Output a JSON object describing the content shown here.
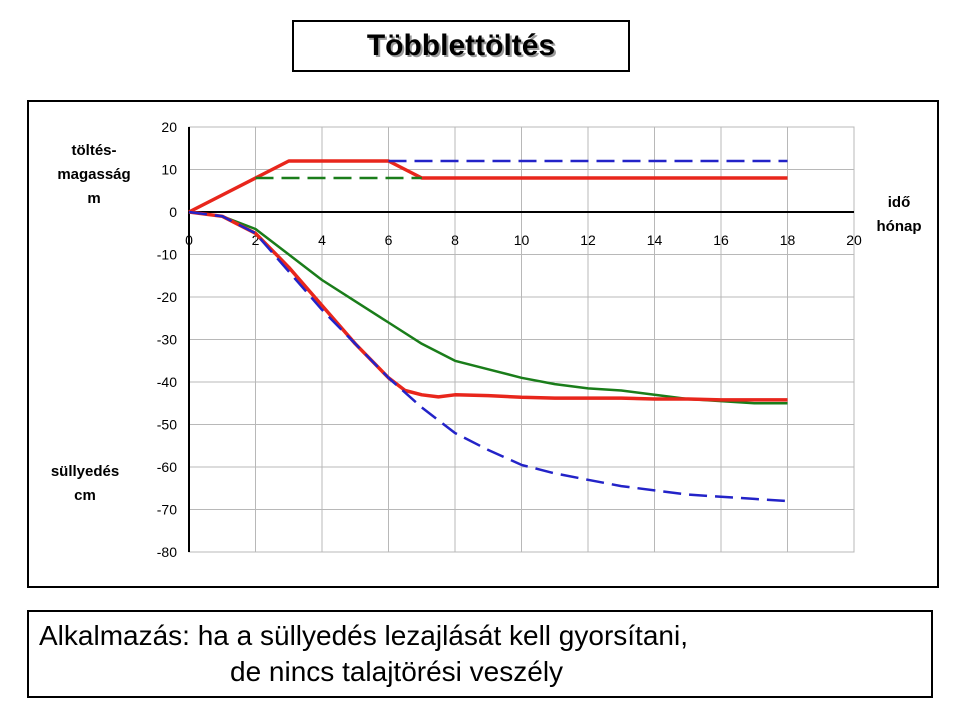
{
  "title": "Többlettöltés",
  "bottom_text": {
    "line1": "Alkalmazás:  ha a süllyedés lezajlását kell gyorsítani,",
    "line2": "de nincs talajtörési veszély"
  },
  "chart_data": {
    "type": "line",
    "title": "Többlettöltés",
    "x_label_lines": [
      "idő",
      "hónap"
    ],
    "y_label_top_lines": [
      "töltés-",
      "magasság",
      "m"
    ],
    "y_label_bottom_lines": [
      "süllyedés",
      "cm"
    ],
    "xlim": [
      0,
      20
    ],
    "ylim": [
      -80,
      20
    ],
    "x_ticks": [
      0,
      2,
      4,
      6,
      8,
      10,
      12,
      14,
      16,
      18,
      20
    ],
    "y_ticks": [
      20,
      10,
      0,
      -10,
      -20,
      -30,
      -40,
      -50,
      -60,
      -70,
      -80
    ],
    "grid": true,
    "colors": {
      "red": "#e8261c",
      "green": "#1a7d1a",
      "blue": "#2323c8"
    },
    "series": [
      {
        "color": "red",
        "dash": "solid",
        "points": [
          [
            0,
            0
          ],
          [
            1,
            4
          ],
          [
            2,
            8
          ],
          [
            3,
            12
          ],
          [
            4,
            12
          ],
          [
            5,
            12
          ],
          [
            6,
            12
          ],
          [
            7,
            8
          ],
          [
            8,
            8
          ],
          [
            10,
            8
          ],
          [
            12,
            8
          ],
          [
            14,
            8
          ],
          [
            16,
            8
          ],
          [
            18,
            8
          ]
        ]
      },
      {
        "color": "green",
        "dash": "dashed",
        "points": [
          [
            2,
            8
          ],
          [
            7,
            8
          ]
        ]
      },
      {
        "color": "blue",
        "dash": "dashed",
        "points": [
          [
            6,
            12
          ],
          [
            18,
            12
          ]
        ]
      },
      {
        "color": "green",
        "dash": "solid",
        "points": [
          [
            0,
            0
          ],
          [
            1,
            -1
          ],
          [
            2,
            -4
          ],
          [
            3,
            -10
          ],
          [
            4,
            -16
          ],
          [
            5,
            -21
          ],
          [
            6,
            -26
          ],
          [
            7,
            -31
          ],
          [
            8,
            -35
          ],
          [
            9,
            -37
          ],
          [
            10,
            -39
          ],
          [
            11,
            -40.5
          ],
          [
            12,
            -41.5
          ],
          [
            13,
            -42
          ],
          [
            14,
            -43
          ],
          [
            15,
            -44
          ],
          [
            16,
            -44.5
          ],
          [
            17,
            -45
          ],
          [
            18,
            -45
          ]
        ]
      },
      {
        "color": "red",
        "dash": "solid",
        "points": [
          [
            0,
            0
          ],
          [
            1,
            -1
          ],
          [
            2,
            -5
          ],
          [
            3,
            -13
          ],
          [
            4,
            -22
          ],
          [
            5,
            -31
          ],
          [
            6,
            -39
          ],
          [
            6.5,
            -42
          ],
          [
            7,
            -43
          ],
          [
            7.5,
            -43.5
          ],
          [
            8,
            -43
          ],
          [
            9,
            -43.2
          ],
          [
            10,
            -43.6
          ],
          [
            11,
            -43.8
          ],
          [
            12,
            -43.8
          ],
          [
            13,
            -43.8
          ],
          [
            14,
            -44
          ],
          [
            15,
            -44
          ],
          [
            16,
            -44.2
          ],
          [
            17,
            -44.2
          ],
          [
            18,
            -44.2
          ]
        ]
      },
      {
        "color": "blue",
        "dash": "dashed",
        "points": [
          [
            0,
            0
          ],
          [
            1,
            -1
          ],
          [
            2,
            -5
          ],
          [
            3,
            -14
          ],
          [
            4,
            -23
          ],
          [
            5,
            -31
          ],
          [
            6,
            -39
          ],
          [
            7,
            -46
          ],
          [
            8,
            -52
          ],
          [
            9,
            -56
          ],
          [
            10,
            -59.5
          ],
          [
            11,
            -61.5
          ],
          [
            12,
            -63
          ],
          [
            13,
            -64.5
          ],
          [
            14,
            -65.5
          ],
          [
            15,
            -66.5
          ],
          [
            16,
            -67
          ],
          [
            17,
            -67.5
          ],
          [
            18,
            -68
          ]
        ]
      }
    ]
  }
}
